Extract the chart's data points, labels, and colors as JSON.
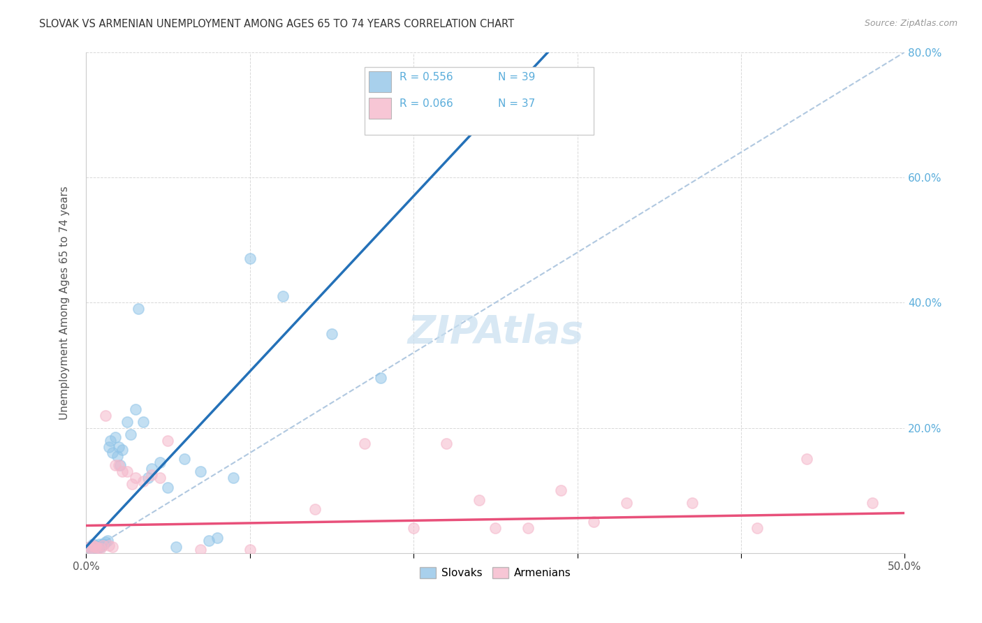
{
  "title": "SLOVAK VS ARMENIAN UNEMPLOYMENT AMONG AGES 65 TO 74 YEARS CORRELATION CHART",
  "source": "Source: ZipAtlas.com",
  "ylabel": "Unemployment Among Ages 65 to 74 years",
  "xlabel": "",
  "xlim": [
    0.0,
    0.5
  ],
  "ylim": [
    0.0,
    0.8
  ],
  "xtick_positions": [
    0.0,
    0.1,
    0.2,
    0.3,
    0.4,
    0.5
  ],
  "xtick_labels": [
    "0.0%",
    "",
    "",
    "",
    "",
    "50.0%"
  ],
  "ytick_positions": [
    0.0,
    0.2,
    0.4,
    0.6,
    0.8
  ],
  "ytick_labels_right": [
    "",
    "20.0%",
    "40.0%",
    "60.0%",
    "80.0%"
  ],
  "legend_R1": "R = 0.556",
  "legend_N1": "N = 39",
  "legend_R2": "R = 0.066",
  "legend_N2": "N = 37",
  "slovak_color": "#92c5e8",
  "armenian_color": "#f5b8cb",
  "slovak_line_color": "#2471b8",
  "armenian_line_color": "#e8507a",
  "diagonal_color": "#b0c8e0",
  "background_color": "#ffffff",
  "grid_color": "#d8d8d8",
  "title_color": "#333333",
  "source_color": "#999999",
  "right_axis_color": "#5aaddb",
  "watermark_color": "#c8dff0",
  "slovaks_x": [
    0.002,
    0.003,
    0.004,
    0.005,
    0.006,
    0.007,
    0.008,
    0.009,
    0.01,
    0.011,
    0.012,
    0.013,
    0.014,
    0.015,
    0.016,
    0.018,
    0.019,
    0.02,
    0.021,
    0.022,
    0.025,
    0.027,
    0.03,
    0.032,
    0.035,
    0.038,
    0.04,
    0.045,
    0.05,
    0.055,
    0.06,
    0.07,
    0.075,
    0.08,
    0.09,
    0.1,
    0.12,
    0.15,
    0.18
  ],
  "slovaks_y": [
    0.01,
    0.008,
    0.015,
    0.01,
    0.012,
    0.008,
    0.015,
    0.01,
    0.015,
    0.015,
    0.018,
    0.02,
    0.17,
    0.18,
    0.16,
    0.185,
    0.155,
    0.17,
    0.14,
    0.165,
    0.21,
    0.19,
    0.23,
    0.39,
    0.21,
    0.12,
    0.135,
    0.145,
    0.105,
    0.01,
    0.15,
    0.13,
    0.02,
    0.025,
    0.12,
    0.47,
    0.41,
    0.35,
    0.28
  ],
  "armenians_x": [
    0.002,
    0.003,
    0.004,
    0.005,
    0.006,
    0.007,
    0.009,
    0.01,
    0.012,
    0.014,
    0.016,
    0.018,
    0.02,
    0.022,
    0.025,
    0.028,
    0.03,
    0.035,
    0.04,
    0.045,
    0.05,
    0.07,
    0.1,
    0.14,
    0.17,
    0.2,
    0.22,
    0.24,
    0.25,
    0.27,
    0.29,
    0.31,
    0.33,
    0.37,
    0.41,
    0.44,
    0.48
  ],
  "armenians_y": [
    0.01,
    0.008,
    0.012,
    0.01,
    0.01,
    0.008,
    0.008,
    0.012,
    0.22,
    0.012,
    0.01,
    0.14,
    0.14,
    0.13,
    0.13,
    0.11,
    0.12,
    0.115,
    0.125,
    0.12,
    0.18,
    0.005,
    0.005,
    0.07,
    0.175,
    0.04,
    0.175,
    0.085,
    0.04,
    0.04,
    0.1,
    0.05,
    0.08,
    0.08,
    0.04,
    0.15,
    0.08
  ],
  "marker_size": 120,
  "marker_alpha": 0.55,
  "marker_edge_width": 1.2
}
